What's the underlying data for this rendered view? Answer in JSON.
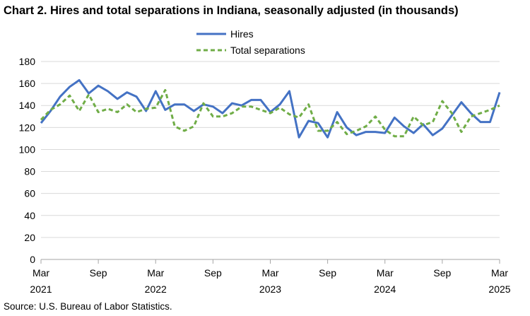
{
  "title": "Chart 2. Hires and total separations in Indiana, seasonally adjusted (in thousands)",
  "source": "Source: U.S. Bureau of Labor Statistics.",
  "colors": {
    "hires": "#4472C4",
    "separations": "#70AD47",
    "grid": "#d9d9d9"
  },
  "chart_data": {
    "type": "line",
    "title": "Chart 2. Hires and total separations in Indiana, seasonally adjusted (in thousands)",
    "xlabel": "",
    "ylabel": "",
    "ylim": [
      0,
      180
    ],
    "yticks": [
      0,
      20,
      40,
      60,
      80,
      100,
      120,
      140,
      160,
      180
    ],
    "grid": "horizontal",
    "legend_position": "top-center",
    "x_start": "Mar 2021",
    "x_end": "Mar 2025",
    "x": [
      "Mar 2021",
      "Apr 2021",
      "May 2021",
      "Jun 2021",
      "Jul 2021",
      "Aug 2021",
      "Sep 2021",
      "Oct 2021",
      "Nov 2021",
      "Dec 2021",
      "Jan 2022",
      "Feb 2022",
      "Mar 2022",
      "Apr 2022",
      "May 2022",
      "Jun 2022",
      "Jul 2022",
      "Aug 2022",
      "Sep 2022",
      "Oct 2022",
      "Nov 2022",
      "Dec 2022",
      "Jan 2023",
      "Feb 2023",
      "Mar 2023",
      "Apr 2023",
      "May 2023",
      "Jun 2023",
      "Jul 2023",
      "Aug 2023",
      "Sep 2023",
      "Oct 2023",
      "Nov 2023",
      "Dec 2023",
      "Jan 2024",
      "Feb 2024",
      "Mar 2024",
      "Apr 2024",
      "May 2024",
      "Jun 2024",
      "Jul 2024",
      "Aug 2024",
      "Sep 2024",
      "Oct 2024",
      "Nov 2024",
      "Dec 2024",
      "Jan 2025",
      "Feb 2025",
      "Mar 2025"
    ],
    "x_tick_labels": [
      {
        "line1": "Mar",
        "line2": "2021",
        "index": 0
      },
      {
        "line1": "Sep",
        "line2": "",
        "index": 6
      },
      {
        "line1": "Mar",
        "line2": "2022",
        "index": 12
      },
      {
        "line1": "Sep",
        "line2": "",
        "index": 18
      },
      {
        "line1": "Mar",
        "line2": "2023",
        "index": 24
      },
      {
        "line1": "Sep",
        "line2": "",
        "index": 30
      },
      {
        "line1": "Mar",
        "line2": "2024",
        "index": 36
      },
      {
        "line1": "Sep",
        "line2": "",
        "index": 42
      },
      {
        "line1": "Mar",
        "line2": "2025",
        "index": 48
      }
    ],
    "series": [
      {
        "name": "Hires",
        "style": "solid",
        "values": [
          124,
          135,
          148,
          157,
          163,
          151,
          158,
          153,
          146,
          152,
          148,
          135,
          153,
          136,
          141,
          141,
          135,
          141,
          139,
          133,
          142,
          140,
          145,
          145,
          134,
          141,
          153,
          111,
          126,
          124,
          111,
          134,
          120,
          113,
          116,
          116,
          115,
          129,
          121,
          115,
          123,
          113,
          119,
          131,
          143,
          133,
          125,
          125,
          152
        ]
      },
      {
        "name": "Total separations",
        "style": "dashed",
        "values": [
          127,
          136,
          141,
          149,
          135,
          150,
          134,
          137,
          134,
          141,
          134,
          137,
          138,
          154,
          121,
          117,
          121,
          142,
          130,
          130,
          133,
          139,
          139,
          136,
          133,
          138,
          132,
          129,
          141,
          117,
          117,
          125,
          114,
          117,
          121,
          130,
          118,
          112,
          112,
          130,
          122,
          125,
          144,
          133,
          116,
          130,
          133,
          136,
          140
        ]
      }
    ]
  }
}
